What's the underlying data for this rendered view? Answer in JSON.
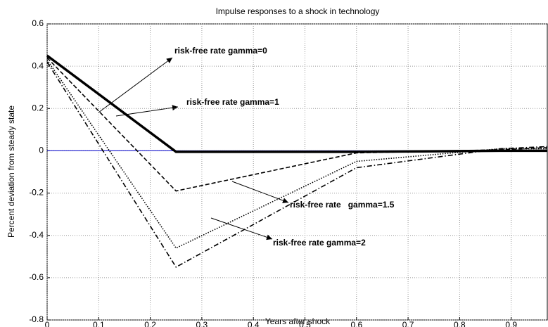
{
  "chart_data": {
    "type": "line",
    "title": "Impulse responses to a shock in technology",
    "xlabel": "Years after shock",
    "ylabel": "Percent deviation from steady state",
    "x": [
      0,
      0.25,
      0.6,
      0.88,
      0.97
    ],
    "series": [
      {
        "name": "risk-free rate gamma=0",
        "color": "#000000",
        "style": "solid",
        "values": [
          0.45,
          -0.005,
          -0.005,
          0,
          0
        ]
      },
      {
        "name": "risk-free rate gamma=1",
        "color": "#000000",
        "style": "dashed",
        "values": [
          0.44,
          -0.19,
          -0.01,
          0.005,
          0.015
        ]
      },
      {
        "name": "risk-free rate   gamma=1.5",
        "color": "#000000",
        "style": "dotted",
        "values": [
          0.43,
          -0.46,
          -0.05,
          0.01,
          0.01
        ]
      },
      {
        "name": "risk-free rate gamma=2",
        "color": "#000000",
        "style": "dashdot",
        "values": [
          0.42,
          -0.55,
          -0.08,
          0.01,
          0.02
        ]
      }
    ],
    "reference_line": {
      "value": 0,
      "color": "#0000cc"
    },
    "xlim": [
      0,
      0.97
    ],
    "xticks": [
      0,
      0.1,
      0.2,
      0.3,
      0.4,
      0.5,
      0.6,
      0.7,
      0.8,
      0.9
    ],
    "ylim": [
      -0.8,
      0.6
    ],
    "yticks": [
      -0.8,
      -0.6,
      -0.4,
      -0.2,
      0,
      0.2,
      0.4,
      0.6
    ],
    "grid": true
  }
}
